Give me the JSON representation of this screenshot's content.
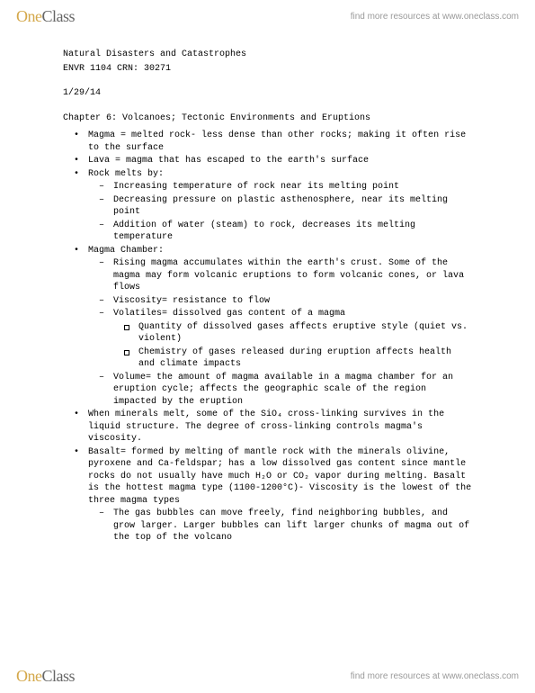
{
  "brand": {
    "one": "One",
    "class": "Class"
  },
  "resources_text": "find more resources at www.oneclass.com",
  "doc": {
    "title": "Natural Disasters and Catastrophes",
    "course": "ENVR 1104 CRN: 30271",
    "date": "1/29/14",
    "chapter": "Chapter 6: Volcanoes; Tectonic Environments and Eruptions",
    "bullets": [
      {
        "text": "Magma = melted rock- less dense than other rocks; making it often rise to the surface"
      },
      {
        "text": "Lava = magma that has escaped to the earth's surface"
      },
      {
        "text": "Rock melts by:",
        "dashes": [
          {
            "text": "Increasing temperature of rock near its melting point"
          },
          {
            "text": "Decreasing pressure on plastic asthenosphere, near its melting point"
          },
          {
            "text": "Addition of water (steam) to rock, decreases its melting temperature"
          }
        ]
      },
      {
        "text": "Magma Chamber:",
        "dashes": [
          {
            "text": "Rising magma accumulates within the earth's crust.  Some of the magma may form volcanic eruptions to form volcanic cones, or lava flows"
          },
          {
            "text": "Viscosity= resistance to flow"
          },
          {
            "text": "Volatiles= dissolved gas content of a magma",
            "squares": [
              {
                "text": "Quantity of dissolved gases affects eruptive style (quiet vs. violent)"
              },
              {
                "text": "Chemistry of gases released during eruption affects health and climate impacts"
              }
            ]
          },
          {
            "text": "Volume= the amount of magma available in a magma chamber for an eruption cycle; affects the geographic scale of the region impacted by the eruption"
          }
        ]
      },
      {
        "text": "When minerals melt, some of the SiO₄ cross-linking survives in the liquid structure.  The degree of cross-linking controls magma's viscosity."
      },
      {
        "text": "Basalt= formed by melting of mantle rock with the minerals olivine, pyroxene and Ca-feldspar; has a low dissolved gas content since mantle rocks do not usually have much H₂O or CO₂ vapor during melting.  Basalt is the hottest magma type (1100-1200°C)- Viscosity is the lowest of the three magma types",
        "dashes": [
          {
            "text": "The gas bubbles can move freely, find neighboring bubbles, and grow larger.  Larger bubbles can lift larger chunks of magma out of the top of the volcano"
          }
        ]
      }
    ]
  }
}
